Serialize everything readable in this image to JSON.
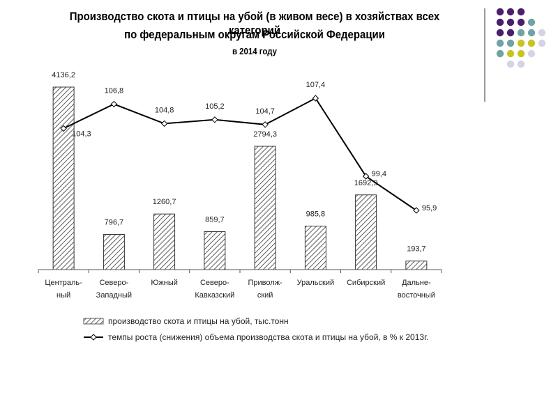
{
  "title": {
    "line1": "Производство скота и птицы на убой (в живом весе) в хозяйствах всех категорий",
    "line2": "по федеральным округам Российской Федерации",
    "line3": "в 2014 году"
  },
  "chart_data": {
    "type": "bar+line",
    "categories": [
      [
        "Централь-",
        "ный"
      ],
      [
        "Северо-",
        "Западный"
      ],
      [
        "Южный"
      ],
      [
        "Северо-",
        "Кавказский"
      ],
      [
        "Приволж-",
        "ский"
      ],
      [
        "Уральский"
      ],
      [
        "Сибирский"
      ],
      [
        "Дальне-",
        "восточный"
      ]
    ],
    "series": [
      {
        "name": "производство скота и птицы на убой, тыс.тонн",
        "kind": "bar",
        "values": [
          4136.2,
          796.7,
          1260.7,
          859.7,
          2794.3,
          985.8,
          1692.9,
          193.7
        ],
        "labels": [
          "4136,2",
          "796,7",
          "1260,7",
          "859,7",
          "2794,3",
          "985,8",
          "1692,9",
          "193,7"
        ]
      },
      {
        "name": "темпы роста (снижения) объема производства скота и птицы на убой, в % к 2013г.",
        "kind": "line",
        "values": [
          104.3,
          106.8,
          104.8,
          105.2,
          104.7,
          107.4,
          99.4,
          95.9
        ],
        "labels": [
          "104,3",
          "106,8",
          "104,8",
          "105,2",
          "104,7",
          "107,4",
          "99,4",
          "95,9"
        ]
      }
    ],
    "bar_ylim": [
      0,
      4136.2
    ],
    "line_ylim": [
      95.9,
      107.4
    ],
    "bar_pattern": "diagonal-hatch",
    "legend_position": "bottom",
    "grid": false
  },
  "decor": {
    "dot_colors": [
      "#4b1e6e",
      "#6fa3a5",
      "#c9c421",
      "#d6d3e6"
    ]
  }
}
